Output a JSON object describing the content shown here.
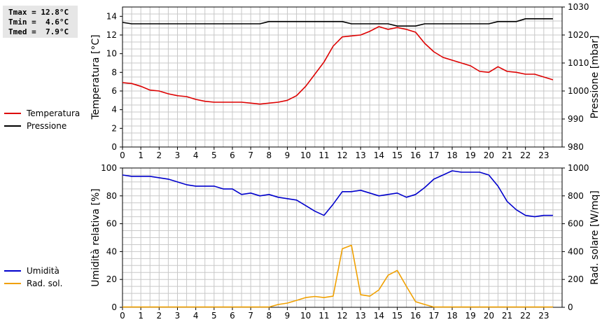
{
  "stats": {
    "tmax": "Tmax = 12.8°C",
    "tmin": "Tmin =  4.6°C",
    "tmed": "Tmed =  7.9°C"
  },
  "colors": {
    "temperature": "#dd0000",
    "pressure": "#000000",
    "humidity": "#0000cc",
    "solar": "#f0a000",
    "grid": "#c8c8c8"
  },
  "chart_data": [
    {
      "type": "line",
      "x": [
        0,
        0.5,
        1,
        1.5,
        2,
        2.5,
        3,
        3.5,
        4,
        4.5,
        5,
        5.5,
        6,
        6.5,
        7,
        7.5,
        8,
        8.5,
        9,
        9.5,
        10,
        10.5,
        11,
        11.5,
        12,
        12.5,
        13,
        13.5,
        14,
        14.5,
        15,
        15.5,
        16,
        16.5,
        17,
        17.5,
        18,
        18.5,
        19,
        19.5,
        20,
        20.5,
        21,
        21.5,
        22,
        22.5,
        23,
        23.5
      ],
      "xticks": [
        0,
        1,
        2,
        3,
        4,
        5,
        6,
        7,
        8,
        9,
        10,
        11,
        12,
        13,
        14,
        15,
        16,
        17,
        18,
        19,
        20,
        21,
        22,
        23
      ],
      "xlim": [
        0,
        24
      ],
      "ylabel": "Temperatura [°C]",
      "ylim": [
        0,
        15
      ],
      "yticks": [
        0,
        2,
        4,
        6,
        8,
        10,
        12,
        14
      ],
      "y2label": "Pressione [mbar]",
      "y2lim": [
        980,
        1030
      ],
      "y2ticks": [
        980,
        990,
        1000,
        1010,
        1020,
        1030
      ],
      "grid": true,
      "legend_position": "left",
      "series": [
        {
          "name": "Temperatura",
          "axis": "left",
          "values": [
            6.9,
            6.8,
            6.5,
            6.1,
            6.0,
            5.7,
            5.5,
            5.4,
            5.1,
            4.9,
            4.8,
            4.8,
            4.8,
            4.8,
            4.7,
            4.6,
            4.7,
            4.8,
            5.0,
            5.5,
            6.5,
            7.8,
            9.1,
            10.8,
            11.8,
            11.9,
            12.0,
            12.4,
            12.9,
            12.6,
            12.8,
            12.6,
            12.3,
            11.1,
            10.2,
            9.6,
            9.3,
            9.0,
            8.7,
            8.1,
            8.0,
            8.6,
            8.1,
            8.0,
            7.8,
            7.8,
            7.5,
            7.2
          ]
        },
        {
          "name": "Pressione",
          "axis": "right",
          "values": [
            1024.5,
            1024,
            1024,
            1024,
            1024,
            1024,
            1024,
            1024,
            1024,
            1024,
            1024,
            1024,
            1024,
            1024,
            1024,
            1024,
            1024.8,
            1024.8,
            1024.8,
            1024.8,
            1024.8,
            1024.8,
            1024.8,
            1024.8,
            1024.8,
            1024,
            1024,
            1024,
            1024,
            1024,
            1023.2,
            1023.2,
            1023.2,
            1024,
            1024,
            1024,
            1024,
            1024,
            1024,
            1024,
            1024,
            1024.8,
            1024.8,
            1024.8,
            1025.8,
            1025.8,
            1025.8,
            1025.8
          ]
        }
      ]
    },
    {
      "type": "line",
      "x": [
        0,
        0.5,
        1,
        1.5,
        2,
        2.5,
        3,
        3.5,
        4,
        4.5,
        5,
        5.5,
        6,
        6.5,
        7,
        7.5,
        8,
        8.5,
        9,
        9.5,
        10,
        10.5,
        11,
        11.5,
        12,
        12.5,
        13,
        13.5,
        14,
        14.5,
        15,
        15.5,
        16,
        16.5,
        17,
        17.5,
        18,
        18.5,
        19,
        19.5,
        20,
        20.5,
        21,
        21.5,
        22,
        22.5,
        23,
        23.5
      ],
      "xticks": [
        0,
        1,
        2,
        3,
        4,
        5,
        6,
        7,
        8,
        9,
        10,
        11,
        12,
        13,
        14,
        15,
        16,
        17,
        18,
        19,
        20,
        21,
        22,
        23
      ],
      "xlim": [
        0,
        24
      ],
      "ylabel": "Umidità relativa [%]",
      "ylim": [
        0,
        100
      ],
      "yticks": [
        0,
        20,
        40,
        60,
        80,
        100
      ],
      "y2label": "Rad. solare [W/mq]",
      "y2lim": [
        0,
        1000
      ],
      "y2ticks": [
        0,
        200,
        400,
        600,
        800,
        1000
      ],
      "grid": true,
      "legend_position": "left",
      "series": [
        {
          "name": "Umidità",
          "axis": "left",
          "values": [
            95,
            94,
            94,
            94,
            93,
            92,
            90,
            88,
            87,
            87,
            87,
            85,
            85,
            81,
            82,
            80,
            81,
            79,
            78,
            77,
            73,
            69,
            66,
            74,
            83,
            83,
            84,
            82,
            80,
            81,
            82,
            79,
            81,
            86,
            92,
            95,
            98,
            97,
            97,
            97,
            95,
            87,
            76,
            70,
            66,
            65,
            66,
            66
          ]
        },
        {
          "name": "Rad. sol.",
          "axis": "right",
          "values": [
            2,
            2,
            2,
            2,
            2,
            2,
            2,
            2,
            2,
            2,
            2,
            2,
            2,
            2,
            2,
            2,
            2,
            20,
            30,
            50,
            70,
            78,
            70,
            80,
            420,
            445,
            90,
            80,
            125,
            230,
            265,
            150,
            40,
            20,
            2,
            2,
            2,
            2,
            2,
            2,
            2,
            2,
            2,
            2,
            2,
            2,
            2,
            2
          ]
        }
      ]
    }
  ]
}
